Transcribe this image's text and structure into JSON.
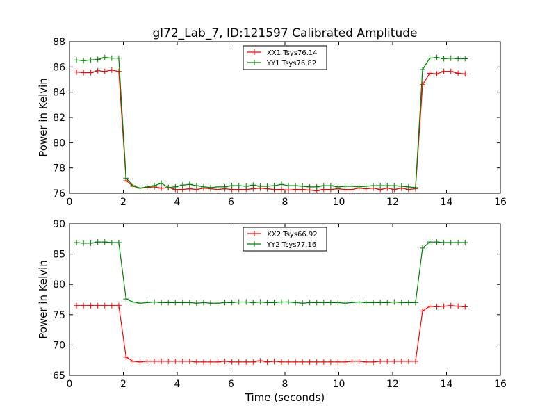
{
  "figure": {
    "title": "gl72_Lab_7, ID:121597 Calibrated Amplitude"
  },
  "chart_data": [
    {
      "type": "line",
      "title": "gl72_Lab_7, ID:121597 Calibrated Amplitude",
      "xlabel": "",
      "ylabel": "Power in Kelvin",
      "xlim": [
        0,
        16
      ],
      "ylim": [
        76,
        88
      ],
      "xticks": [
        "0",
        "2",
        "4",
        "6",
        "8",
        "10",
        "12",
        "14",
        "16"
      ],
      "yticks": [
        "76",
        "78",
        "80",
        "82",
        "84",
        "86",
        "88"
      ],
      "legend_position": "top-center",
      "grid": false,
      "series": [
        {
          "name": "XX1 Tsys76.14",
          "color": "#ff0000",
          "x": [
            0.26,
            0.52,
            0.79,
            1.05,
            1.31,
            1.57,
            1.83,
            2.1,
            2.36,
            2.62,
            2.88,
            3.15,
            3.41,
            3.67,
            3.93,
            4.2,
            4.46,
            4.72,
            4.98,
            5.24,
            5.51,
            5.77,
            6.03,
            6.29,
            6.56,
            6.82,
            7.08,
            7.34,
            7.6,
            7.87,
            8.13,
            8.39,
            8.65,
            8.92,
            9.18,
            9.44,
            9.7,
            9.97,
            10.23,
            10.49,
            10.75,
            11.01,
            11.28,
            11.54,
            11.8,
            12.06,
            12.33,
            12.59,
            12.85,
            13.11,
            13.38,
            13.64,
            13.9,
            14.16,
            14.43,
            14.69
          ],
          "y": [
            85.6,
            85.55,
            85.55,
            85.7,
            85.65,
            85.75,
            85.65,
            77.0,
            76.55,
            76.4,
            76.45,
            76.5,
            76.4,
            76.45,
            76.3,
            76.3,
            76.35,
            76.3,
            76.4,
            76.35,
            76.3,
            76.35,
            76.3,
            76.3,
            76.3,
            76.35,
            76.4,
            76.35,
            76.3,
            76.3,
            76.25,
            76.3,
            76.3,
            76.25,
            76.2,
            76.3,
            76.3,
            76.35,
            76.3,
            76.3,
            76.4,
            76.35,
            76.4,
            76.3,
            76.4,
            76.3,
            76.4,
            76.3,
            76.35,
            84.6,
            85.5,
            85.45,
            85.65,
            85.65,
            85.5,
            85.45
          ]
        },
        {
          "name": "YY1 Tsys76.82",
          "color": "#008000",
          "x": [
            0.26,
            0.52,
            0.79,
            1.05,
            1.31,
            1.57,
            1.83,
            2.1,
            2.36,
            2.62,
            2.88,
            3.15,
            3.41,
            3.67,
            3.93,
            4.2,
            4.46,
            4.72,
            4.98,
            5.24,
            5.51,
            5.77,
            6.03,
            6.29,
            6.56,
            6.82,
            7.08,
            7.34,
            7.6,
            7.87,
            8.13,
            8.39,
            8.65,
            8.92,
            9.18,
            9.44,
            9.7,
            9.97,
            10.23,
            10.49,
            10.75,
            11.01,
            11.28,
            11.54,
            11.8,
            12.06,
            12.33,
            12.59,
            12.85,
            13.11,
            13.38,
            13.64,
            13.9,
            14.16,
            14.43,
            14.69
          ],
          "y": [
            86.55,
            86.5,
            86.55,
            86.6,
            86.75,
            86.7,
            86.7,
            77.2,
            76.6,
            76.4,
            76.5,
            76.6,
            76.8,
            76.45,
            76.5,
            76.65,
            76.7,
            76.6,
            76.5,
            76.45,
            76.5,
            76.5,
            76.6,
            76.6,
            76.55,
            76.65,
            76.55,
            76.55,
            76.6,
            76.7,
            76.6,
            76.6,
            76.55,
            76.5,
            76.5,
            76.6,
            76.6,
            76.5,
            76.55,
            76.55,
            76.5,
            76.55,
            76.6,
            76.6,
            76.6,
            76.6,
            76.55,
            76.5,
            76.45,
            85.8,
            86.7,
            86.75,
            86.65,
            86.7,
            86.65,
            86.65
          ]
        }
      ]
    },
    {
      "type": "line",
      "title": "",
      "xlabel": "Time (seconds)",
      "ylabel": "Power in Kelvin",
      "xlim": [
        0,
        16
      ],
      "ylim": [
        65,
        90
      ],
      "xticks": [
        "0",
        "2",
        "4",
        "6",
        "8",
        "10",
        "12",
        "14",
        "16"
      ],
      "yticks": [
        "65",
        "70",
        "75",
        "80",
        "85",
        "90"
      ],
      "legend_position": "top-center",
      "grid": false,
      "series": [
        {
          "name": "XX2 Tsys66.92",
          "color": "#ff0000",
          "x": [
            0.26,
            0.52,
            0.79,
            1.05,
            1.31,
            1.57,
            1.83,
            2.1,
            2.36,
            2.62,
            2.88,
            3.15,
            3.41,
            3.67,
            3.93,
            4.2,
            4.46,
            4.72,
            4.98,
            5.24,
            5.51,
            5.77,
            6.03,
            6.29,
            6.56,
            6.82,
            7.08,
            7.34,
            7.6,
            7.87,
            8.13,
            8.39,
            8.65,
            8.92,
            9.18,
            9.44,
            9.7,
            9.97,
            10.23,
            10.49,
            10.75,
            11.01,
            11.28,
            11.54,
            11.8,
            12.06,
            12.33,
            12.59,
            12.85,
            13.11,
            13.38,
            13.64,
            13.9,
            14.16,
            14.43,
            14.69
          ],
          "y": [
            76.5,
            76.5,
            76.5,
            76.5,
            76.5,
            76.5,
            76.5,
            68.0,
            67.3,
            67.2,
            67.3,
            67.3,
            67.3,
            67.3,
            67.3,
            67.3,
            67.3,
            67.2,
            67.2,
            67.2,
            67.2,
            67.3,
            67.2,
            67.2,
            67.2,
            67.2,
            67.4,
            67.2,
            67.3,
            67.2,
            67.2,
            67.2,
            67.2,
            67.2,
            67.2,
            67.2,
            67.2,
            67.2,
            67.2,
            67.3,
            67.3,
            67.2,
            67.2,
            67.3,
            67.3,
            67.3,
            67.3,
            67.3,
            67.3,
            75.6,
            76.4,
            76.3,
            76.4,
            76.5,
            76.4,
            76.3
          ]
        },
        {
          "name": "YY2 Tsys77.16",
          "color": "#008000",
          "x": [
            0.26,
            0.52,
            0.79,
            1.05,
            1.31,
            1.57,
            1.83,
            2.1,
            2.36,
            2.62,
            2.88,
            3.15,
            3.41,
            3.67,
            3.93,
            4.2,
            4.46,
            4.72,
            4.98,
            5.24,
            5.51,
            5.77,
            6.03,
            6.29,
            6.56,
            6.82,
            7.08,
            7.34,
            7.6,
            7.87,
            8.13,
            8.39,
            8.65,
            8.92,
            9.18,
            9.44,
            9.7,
            9.97,
            10.23,
            10.49,
            10.75,
            11.01,
            11.28,
            11.54,
            11.8,
            12.06,
            12.33,
            12.59,
            12.85,
            13.11,
            13.38,
            13.64,
            13.9,
            14.16,
            14.43,
            14.69
          ],
          "y": [
            86.9,
            86.8,
            86.8,
            87.0,
            87.0,
            86.9,
            86.9,
            77.6,
            77.1,
            76.9,
            77.0,
            77.1,
            77.0,
            77.0,
            77.0,
            77.0,
            77.0,
            76.9,
            77.0,
            76.9,
            76.9,
            77.0,
            77.0,
            77.1,
            77.1,
            77.0,
            77.1,
            77.0,
            77.0,
            77.1,
            77.1,
            77.0,
            76.9,
            77.0,
            77.0,
            77.0,
            77.0,
            77.0,
            76.9,
            77.0,
            77.1,
            77.0,
            77.0,
            77.0,
            77.0,
            77.1,
            77.0,
            77.0,
            77.0,
            86.0,
            87.0,
            87.0,
            86.9,
            86.9,
            86.9,
            86.9
          ]
        }
      ]
    }
  ]
}
